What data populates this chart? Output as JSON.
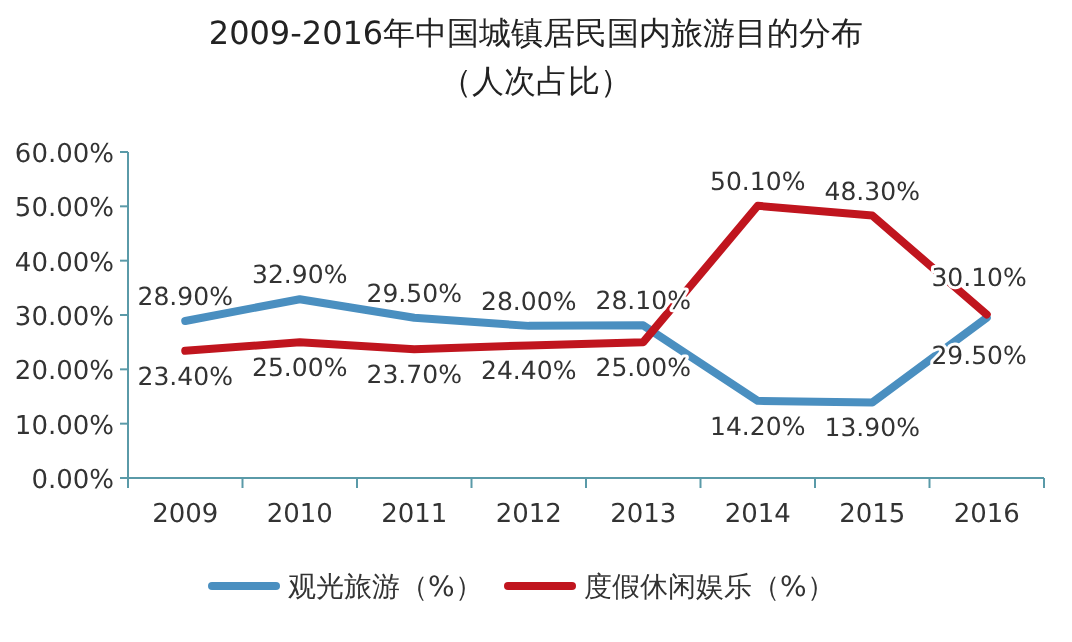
{
  "chart_data": {
    "type": "line",
    "title": "2009-2016年中国城镇居民国内旅游目的分布",
    "subtitle": "（人次占比）",
    "categories": [
      "2009",
      "2010",
      "2011",
      "2012",
      "2013",
      "2014",
      "2015",
      "2016"
    ],
    "series": [
      {
        "name": "观光旅游（%）",
        "color": "#4a8fc0",
        "values": [
          28.9,
          32.9,
          29.5,
          28.0,
          28.1,
          14.2,
          13.9,
          29.5
        ],
        "value_labels": [
          "28.90%",
          "32.90%",
          "29.50%",
          "28.00%",
          "28.10%",
          "14.20%",
          "13.90%",
          "29.50%"
        ]
      },
      {
        "name": "度假休闲娱乐（%）",
        "color": "#c0151e",
        "values": [
          23.4,
          25.0,
          23.7,
          24.4,
          25.0,
          50.1,
          48.3,
          30.1
        ],
        "value_labels": [
          "23.40%",
          "25.00%",
          "23.70%",
          "24.40%",
          "25.00%",
          "50.10%",
          "48.30%",
          "30.10%"
        ]
      }
    ],
    "ylim": [
      0,
      60
    ],
    "yticks": [
      {
        "value": 0,
        "label": "0.00%"
      },
      {
        "value": 10,
        "label": "10.00%"
      },
      {
        "value": 20,
        "label": "20.00%"
      },
      {
        "value": 30,
        "label": "30.00%"
      },
      {
        "value": 40,
        "label": "40.00%"
      },
      {
        "value": 50,
        "label": "50.00%"
      },
      {
        "value": 60,
        "label": "60.00%"
      }
    ],
    "grid": false,
    "legend": "bottom",
    "marker": "none",
    "line_style": "solid"
  }
}
